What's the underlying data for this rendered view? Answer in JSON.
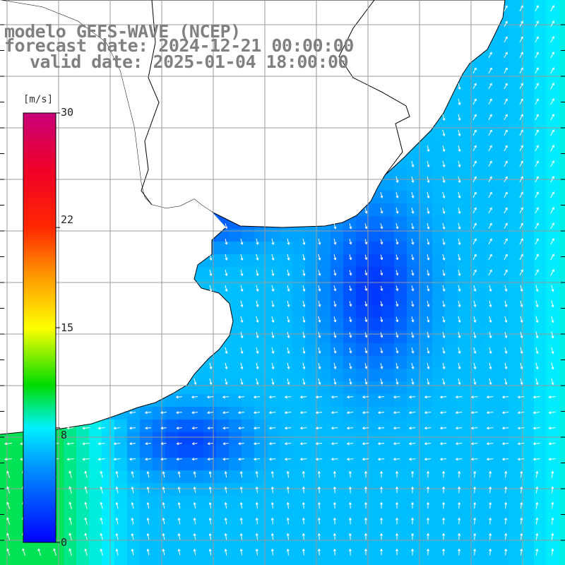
{
  "title": {
    "model": "modelo GEFS-WAVE (NCEP)",
    "forecast_date": "forecast date: 2024-12-21 00:00:00",
    "valid_date": "valid date: 2025-01-04 18:00:00"
  },
  "colorbar": {
    "unit": "[m/s]",
    "min": 0,
    "max": 30,
    "ticks": [
      "30",
      "22",
      "15",
      "8",
      "0"
    ],
    "tick_values": [
      30,
      22,
      15,
      8,
      0
    ],
    "gradient": [
      "#0000ff",
      "#00a0ff",
      "#00ffff",
      "#00ff00",
      "#ffff00",
      "#ff8000",
      "#ff0000",
      "#c00080"
    ]
  },
  "map": {
    "lon_range": [
      -67,
      -48
    ],
    "lat_range": [
      -41,
      -30
    ],
    "variable": "wind speed with direction arrows",
    "land_color": "#ffffff",
    "coast_color": "#000000",
    "grid_color": "#9a9a9a",
    "arrow_color": "#ffffff"
  }
}
